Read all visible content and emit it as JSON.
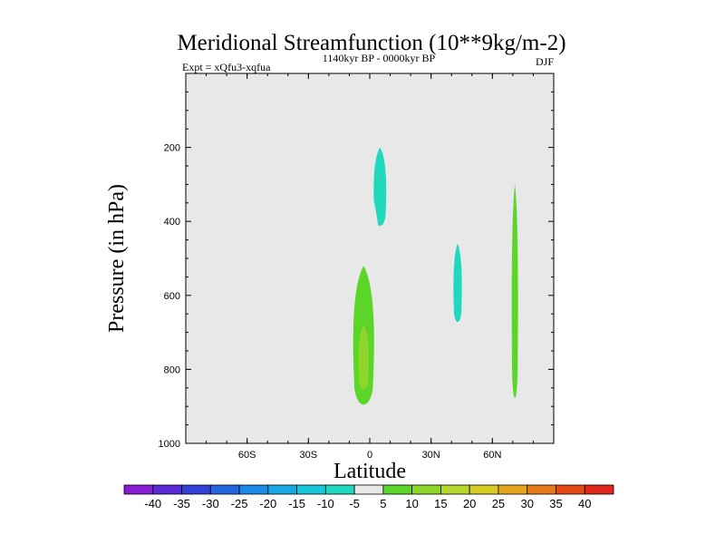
{
  "chart_data": {
    "type": "contour",
    "title": "Meridional Streamfunction (10**9kg/m-2)",
    "experiment": "Expt = xQfu3-xqfua",
    "period": "1140kyr BP - 0000kyr BP",
    "season": "DJF",
    "xlabel": "Latitude",
    "ylabel": "Pressure (in hPa)",
    "xlim": [
      -90,
      90
    ],
    "ylim": [
      1000,
      0
    ],
    "x_ticks": [
      {
        "value": -60,
        "label": "60S"
      },
      {
        "value": -30,
        "label": "30S"
      },
      {
        "value": 0,
        "label": "0"
      },
      {
        "value": 30,
        "label": "30N"
      },
      {
        "value": 60,
        "label": "60N"
      }
    ],
    "y_ticks": [
      {
        "value": 200,
        "label": "200"
      },
      {
        "value": 400,
        "label": "400"
      },
      {
        "value": 600,
        "label": "600"
      },
      {
        "value": 800,
        "label": "800"
      },
      {
        "value": 1000,
        "label": "1000"
      }
    ],
    "background_color": "#e8e8e8",
    "colorbar": {
      "labels": [
        "-40",
        "-35",
        "-30",
        "-25",
        "-20",
        "-15",
        "-10",
        "-5",
        "5",
        "10",
        "15",
        "20",
        "25",
        "30",
        "35",
        "40"
      ],
      "colors": [
        "#8a1cd8",
        "#5a2ad6",
        "#3340d8",
        "#2266e0",
        "#1a8be6",
        "#17a9e6",
        "#18c6da",
        "#1fd8be",
        "#e8e8e8",
        "#5bd628",
        "#8ed62a",
        "#b6d62a",
        "#d8cc22",
        "#e6a61c",
        "#e67a18",
        "#e64a14",
        "#e0261a"
      ]
    },
    "regions": [
      {
        "name": "sh-polar-thin-cell",
        "sign": "negative",
        "level": "-5",
        "center": {
          "lat": -69,
          "p": 450
        },
        "lat_range": [
          -69.5,
          -68.5
        ],
        "p_range": [
          60,
          880
        ]
      },
      {
        "name": "tropical-upper-negative-cell",
        "sign": "negative",
        "level": "-5",
        "center": {
          "lat": 3,
          "p": 260
        },
        "lat_range": [
          -3,
          19
        ],
        "p_range": [
          130,
          590
        ]
      },
      {
        "name": "tropical-upper-negative-core",
        "sign": "negative",
        "level": "-10",
        "center": {
          "lat": 5,
          "p": 280
        },
        "lat_range": [
          2,
          8
        ],
        "p_range": [
          200,
          420
        ]
      },
      {
        "name": "sh-hadley-positive-cell",
        "sign": "positive",
        "level": "5",
        "center": {
          "lat": -2,
          "p": 700
        },
        "lat_range": [
          -10,
          6
        ],
        "p_range": [
          280,
          960
        ]
      },
      {
        "name": "sh-hadley-core-10",
        "sign": "positive",
        "level": "10",
        "center": {
          "lat": -3,
          "p": 760
        },
        "lat_range": [
          -8,
          2
        ],
        "p_range": [
          520,
          910
        ]
      },
      {
        "name": "sh-hadley-core-15",
        "sign": "positive",
        "level": "15",
        "center": {
          "lat": -3,
          "p": 770
        },
        "lat_range": [
          -5.5,
          -0.5
        ],
        "p_range": [
          680,
          860
        ]
      },
      {
        "name": "nh-subtropical-positive-cell",
        "sign": "positive",
        "level": "5",
        "center": {
          "lat": 23,
          "p": 700
        },
        "lat_range": [
          17,
          33
        ],
        "p_range": [
          360,
          920
        ]
      },
      {
        "name": "nh-midlat-negative-cell",
        "sign": "negative",
        "level": "-5",
        "center": {
          "lat": 43,
          "p": 560
        },
        "lat_range": [
          36,
          50
        ],
        "p_range": [
          290,
          890
        ]
      },
      {
        "name": "nh-midlat-negative-core",
        "sign": "negative",
        "level": "-10",
        "center": {
          "lat": 43,
          "p": 560
        },
        "lat_range": [
          41,
          45
        ],
        "p_range": [
          460,
          680
        ]
      },
      {
        "name": "nh-upper-small-cell",
        "sign": "negative",
        "level": "-5",
        "center": {
          "lat": 37,
          "p": 115
        },
        "lat_range": [
          36.5,
          37.5
        ],
        "p_range": [
          85,
          145
        ]
      },
      {
        "name": "nh-polar-positive-cell",
        "sign": "positive",
        "level": "5",
        "center": {
          "lat": 71,
          "p": 480
        },
        "lat_range": [
          67,
          75
        ],
        "p_range": [
          0,
          970
        ]
      },
      {
        "name": "nh-polar-core-10",
        "sign": "positive",
        "level": "10",
        "center": {
          "lat": 71,
          "p": 520
        },
        "lat_range": [
          69.5,
          72.5
        ],
        "p_range": [
          300,
          900
        ]
      },
      {
        "name": "nh-polar-thin-negative",
        "sign": "negative",
        "level": "-5",
        "center": {
          "lat": 79,
          "p": 420
        },
        "lat_range": [
          78,
          80
        ],
        "p_range": [
          0,
          840
        ]
      }
    ]
  }
}
